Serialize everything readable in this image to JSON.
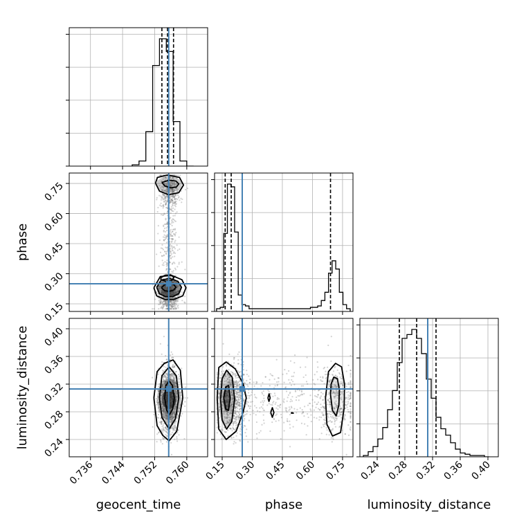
{
  "chart_data": {
    "type": "corner",
    "parameters": [
      "geocent_time",
      "phase",
      "luminosity_distance"
    ],
    "truths": {
      "geocent_time": 0.7555,
      "phase": 0.25,
      "luminosity_distance": 0.313
    },
    "quantiles_dashed": {
      "geocent_time": [
        0.7538,
        0.7552,
        0.7567
      ],
      "phase": [
        0.165,
        0.195,
        0.69
      ],
      "luminosity_distance": [
        0.272,
        0.297,
        0.325
      ]
    },
    "axes": {
      "geocent_time": {
        "range": [
          0.7307,
          0.7652
        ],
        "ticks": [
          0.736,
          0.744,
          0.752,
          0.76
        ],
        "tick_labels": [
          "0.736",
          "0.744",
          "0.752",
          "0.760"
        ]
      },
      "phase": {
        "range": [
          0.112,
          0.802
        ],
        "ticks": [
          0.15,
          0.3,
          0.45,
          0.6,
          0.75
        ],
        "tick_labels": [
          "0.15",
          "0.30",
          "0.45",
          "0.60",
          "0.75"
        ]
      },
      "luminosity_distance": {
        "range": [
          0.215,
          0.415
        ],
        "ticks": [
          0.24,
          0.28,
          0.32,
          0.36,
          0.4
        ],
        "tick_labels": [
          "0.24",
          "0.28",
          "0.32",
          "0.36",
          "0.40"
        ]
      }
    },
    "histograms": {
      "geocent_time": {
        "edges": [
          0.7464,
          0.7481,
          0.7498,
          0.7515,
          0.7532,
          0.7549,
          0.7566,
          0.7583,
          0.76,
          0.7617
        ],
        "counts": [
          0.01,
          0.04,
          0.27,
          0.79,
          1.0,
          0.9,
          0.35,
          0.04,
          0.0
        ]
      },
      "phase": {
        "edges": [
          0.122,
          0.14,
          0.158,
          0.176,
          0.194,
          0.212,
          0.23,
          0.248,
          0.266,
          0.284,
          0.302,
          0.32,
          0.338,
          0.356,
          0.374,
          0.392,
          0.41,
          0.428,
          0.446,
          0.464,
          0.482,
          0.5,
          0.518,
          0.536,
          0.554,
          0.572,
          0.59,
          0.608,
          0.626,
          0.644,
          0.662,
          0.68,
          0.698,
          0.716,
          0.734,
          0.752,
          0.77,
          0.788
        ],
        "counts": [
          0.02,
          0.03,
          0.57,
          0.93,
          0.91,
          0.58,
          0.12,
          0.05,
          0.04,
          0.02,
          0.02,
          0.02,
          0.02,
          0.02,
          0.02,
          0.02,
          0.02,
          0.02,
          0.02,
          0.02,
          0.02,
          0.02,
          0.02,
          0.02,
          0.02,
          0.02,
          0.03,
          0.03,
          0.04,
          0.08,
          0.14,
          0.28,
          0.37,
          0.31,
          0.14,
          0.05,
          0.02
        ]
      },
      "luminosity_distance": {
        "edges": [
          0.22,
          0.227,
          0.234,
          0.241,
          0.248,
          0.255,
          0.262,
          0.269,
          0.276,
          0.283,
          0.29,
          0.297,
          0.304,
          0.311,
          0.318,
          0.325,
          0.332,
          0.339,
          0.346,
          0.353,
          0.36,
          0.367,
          0.374,
          0.381,
          0.388,
          0.395,
          0.402
        ],
        "counts": [
          0.01,
          0.04,
          0.08,
          0.14,
          0.23,
          0.37,
          0.52,
          0.74,
          0.93,
          0.96,
          1.0,
          0.93,
          0.81,
          0.61,
          0.46,
          0.31,
          0.22,
          0.17,
          0.11,
          0.06,
          0.03,
          0.02,
          0.01,
          0.01,
          0.01,
          0.0
        ]
      }
    },
    "pairs": [
      {
        "x": "geocent_time",
        "y": "phase",
        "contours": [
          [
            [
              0.7537,
              0.23
            ],
            [
              0.7545,
              0.215
            ],
            [
              0.7556,
              0.212
            ],
            [
              0.7567,
              0.218
            ],
            [
              0.7573,
              0.232
            ],
            [
              0.7567,
              0.248
            ],
            [
              0.7556,
              0.252
            ],
            [
              0.7545,
              0.246
            ],
            [
              0.7537,
              0.23
            ]
          ],
          [
            [
              0.7535,
              0.27
            ],
            [
              0.7548,
              0.262
            ],
            [
              0.7562,
              0.265
            ],
            [
              0.7568,
              0.282
            ],
            [
              0.756,
              0.294
            ],
            [
              0.7546,
              0.292
            ],
            [
              0.7536,
              0.282
            ],
            [
              0.7535,
              0.27
            ]
          ],
          [
            [
              0.7525,
              0.232
            ],
            [
              0.7532,
              0.2
            ],
            [
              0.7547,
              0.186
            ],
            [
              0.7565,
              0.186
            ],
            [
              0.758,
              0.2
            ],
            [
              0.7587,
              0.232
            ],
            [
              0.7578,
              0.262
            ],
            [
              0.7557,
              0.277
            ],
            [
              0.7536,
              0.268
            ],
            [
              0.7525,
              0.232
            ]
          ],
          [
            [
              0.7518,
              0.23
            ],
            [
              0.7525,
              0.19
            ],
            [
              0.7545,
              0.172
            ],
            [
              0.7568,
              0.172
            ],
            [
              0.759,
              0.19
            ],
            [
              0.7598,
              0.23
            ],
            [
              0.7588,
              0.27
            ],
            [
              0.7562,
              0.292
            ],
            [
              0.7534,
              0.286
            ],
            [
              0.7518,
              0.23
            ]
          ],
          [
            [
              0.7538,
              0.755
            ],
            [
              0.7545,
              0.738
            ],
            [
              0.756,
              0.728
            ],
            [
              0.7574,
              0.732
            ],
            [
              0.758,
              0.748
            ],
            [
              0.7573,
              0.762
            ],
            [
              0.7556,
              0.766
            ],
            [
              0.7538,
              0.755
            ]
          ],
          [
            [
              0.7522,
              0.752
            ],
            [
              0.7532,
              0.712
            ],
            [
              0.7555,
              0.694
            ],
            [
              0.758,
              0.704
            ],
            [
              0.7592,
              0.742
            ],
            [
              0.7582,
              0.78
            ],
            [
              0.7552,
              0.792
            ],
            [
              0.7527,
              0.78
            ],
            [
              0.7522,
              0.752
            ]
          ]
        ],
        "dense": [
          [
            0.7556,
            0.232,
            0.003,
            0.045,
            1.0
          ],
          [
            0.7556,
            0.745,
            0.0032,
            0.04,
            0.45
          ]
        ]
      },
      {
        "x": "geocent_time",
        "y": "luminosity_distance",
        "contours": [
          [
            [
              0.7545,
              0.3
            ],
            [
              0.755,
              0.282
            ],
            [
              0.7557,
              0.276
            ],
            [
              0.7565,
              0.284
            ],
            [
              0.7569,
              0.3
            ],
            [
              0.7564,
              0.318
            ],
            [
              0.7556,
              0.325
            ],
            [
              0.7548,
              0.318
            ],
            [
              0.7545,
              0.3
            ]
          ],
          [
            [
              0.7532,
              0.3
            ],
            [
              0.7538,
              0.272
            ],
            [
              0.7556,
              0.255
            ],
            [
              0.7572,
              0.27
            ],
            [
              0.758,
              0.3
            ],
            [
              0.7574,
              0.332
            ],
            [
              0.7556,
              0.345
            ],
            [
              0.7538,
              0.332
            ],
            [
              0.7532,
              0.3
            ]
          ],
          [
            [
              0.7518,
              0.3
            ],
            [
              0.7526,
              0.26
            ],
            [
              0.754,
              0.246
            ],
            [
              0.7556,
              0.238
            ],
            [
              0.7575,
              0.252
            ],
            [
              0.759,
              0.3
            ],
            [
              0.7584,
              0.34
            ],
            [
              0.7566,
              0.355
            ],
            [
              0.7544,
              0.35
            ],
            [
              0.7526,
              0.338
            ],
            [
              0.7518,
              0.3
            ]
          ]
        ],
        "dense": [
          [
            0.7556,
            0.298,
            0.0018,
            0.014,
            1.0
          ],
          [
            0.7556,
            0.298,
            0.003,
            0.03,
            0.55
          ]
        ]
      },
      {
        "x": "phase",
        "y": "luminosity_distance",
        "contours": [
          [
            [
              0.158,
              0.3
            ],
            [
              0.168,
              0.284
            ],
            [
              0.182,
              0.282
            ],
            [
              0.19,
              0.3
            ],
            [
              0.182,
              0.318
            ],
            [
              0.168,
              0.316
            ],
            [
              0.158,
              0.3
            ]
          ],
          [
            [
              0.142,
              0.298
            ],
            [
              0.15,
              0.268
            ],
            [
              0.172,
              0.255
            ],
            [
              0.198,
              0.266
            ],
            [
              0.212,
              0.298
            ],
            [
              0.2,
              0.33
            ],
            [
              0.172,
              0.34
            ],
            [
              0.15,
              0.328
            ],
            [
              0.142,
              0.298
            ]
          ],
          [
            [
              0.125,
              0.3
            ],
            [
              0.133,
              0.255
            ],
            [
              0.17,
              0.24
            ],
            [
              0.22,
              0.252
            ],
            [
              0.255,
              0.28
            ],
            [
              0.27,
              0.3
            ],
            [
              0.255,
              0.32
            ],
            [
              0.215,
              0.342
            ],
            [
              0.17,
              0.352
            ],
            [
              0.133,
              0.344
            ],
            [
              0.125,
              0.3
            ]
          ],
          [
            [
              0.69,
              0.305
            ],
            [
              0.7,
              0.282
            ],
            [
              0.718,
              0.274
            ],
            [
              0.732,
              0.29
            ],
            [
              0.734,
              0.312
            ],
            [
              0.724,
              0.328
            ],
            [
              0.706,
              0.33
            ],
            [
              0.693,
              0.32
            ],
            [
              0.69,
              0.305
            ]
          ],
          [
            [
              0.665,
              0.3
            ],
            [
              0.672,
              0.262
            ],
            [
              0.7,
              0.245
            ],
            [
              0.74,
              0.25
            ],
            [
              0.758,
              0.285
            ],
            [
              0.76,
              0.32
            ],
            [
              0.745,
              0.345
            ],
            [
              0.715,
              0.35
            ],
            [
              0.68,
              0.338
            ],
            [
              0.665,
              0.3
            ]
          ],
          [
            [
              0.378,
              0.3
            ],
            [
              0.383,
              0.295
            ],
            [
              0.389,
              0.3
            ],
            [
              0.384,
              0.306
            ],
            [
              0.378,
              0.3
            ]
          ],
          [
            [
              0.392,
              0.279
            ],
            [
              0.4,
              0.272
            ],
            [
              0.408,
              0.279
            ],
            [
              0.4,
              0.286
            ],
            [
              0.392,
              0.279
            ]
          ],
          [
            [
              0.495,
              0.279
            ],
            [
              0.505,
              0.278
            ],
            [
              0.495,
              0.278
            ],
            [
              0.495,
              0.279
            ]
          ]
        ],
        "dense": [
          [
            0.172,
            0.298,
            0.018,
            0.018,
            1.0
          ],
          [
            0.172,
            0.298,
            0.04,
            0.04,
            0.4
          ],
          [
            0.715,
            0.303,
            0.03,
            0.03,
            0.2
          ]
        ]
      }
    ],
    "samples": {
      "geocent_time": {
        "center": 0.7556,
        "sd": 0.0012
      },
      "phase_modes": [
        {
          "center": 0.2,
          "sd": 0.035,
          "weight": 0.55
        },
        {
          "center": 0.72,
          "sd": 0.045,
          "weight": 0.25
        },
        {
          "center": 0.46,
          "sd": 0.18,
          "weight": 0.2
        }
      ],
      "luminosity_distance": {
        "center": 0.298,
        "sd": 0.024
      },
      "count": 1600
    },
    "colors": {
      "truth": "#4682b4",
      "hist": "#000000",
      "grid": "#b0b0b0",
      "points": "#7f7f7f"
    }
  }
}
